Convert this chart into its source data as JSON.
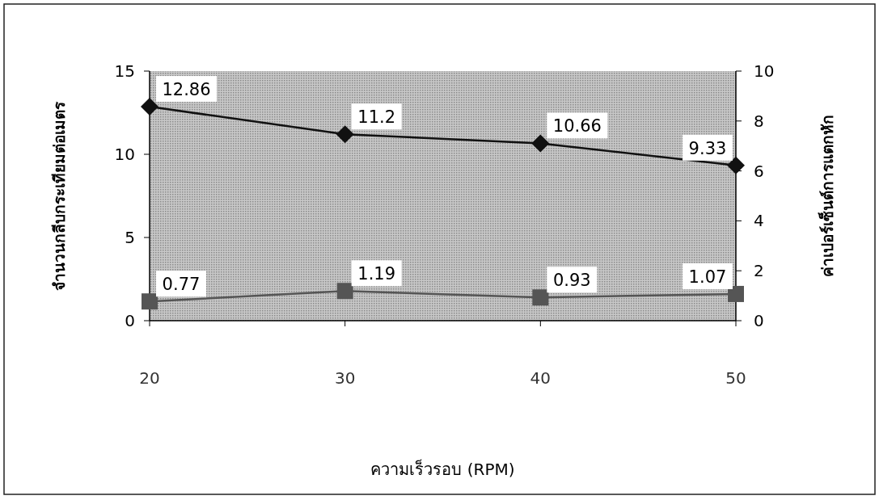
{
  "chart_data": {
    "type": "line",
    "categories": [
      "20",
      "30",
      "40",
      "50"
    ],
    "series": [
      {
        "color": "#111111",
        "marker": "diamond",
        "values": [
          12.86,
          11.2,
          10.66,
          9.33
        ]
      },
      {
        "color": "#555555",
        "marker": "square",
        "axis": "y2",
        "values": [
          0.77,
          1.19,
          0.93,
          1.07
        ]
      }
    ],
    "ylim": [
      0,
      15
    ],
    "yticks": [
      0,
      5,
      10,
      15
    ],
    "y2lim": [
      0,
      10
    ],
    "y2ticks": [
      0,
      2,
      4,
      6,
      8,
      10
    ],
    "xlabel": "ความเร็วรอบ (RPM)",
    "ylabel": "จำนวนกลีบกระเทียมต่อเมตร",
    "y2label": "ค่าเปอร์เซ็นต์การแตกหัก",
    "data_labels": true
  }
}
